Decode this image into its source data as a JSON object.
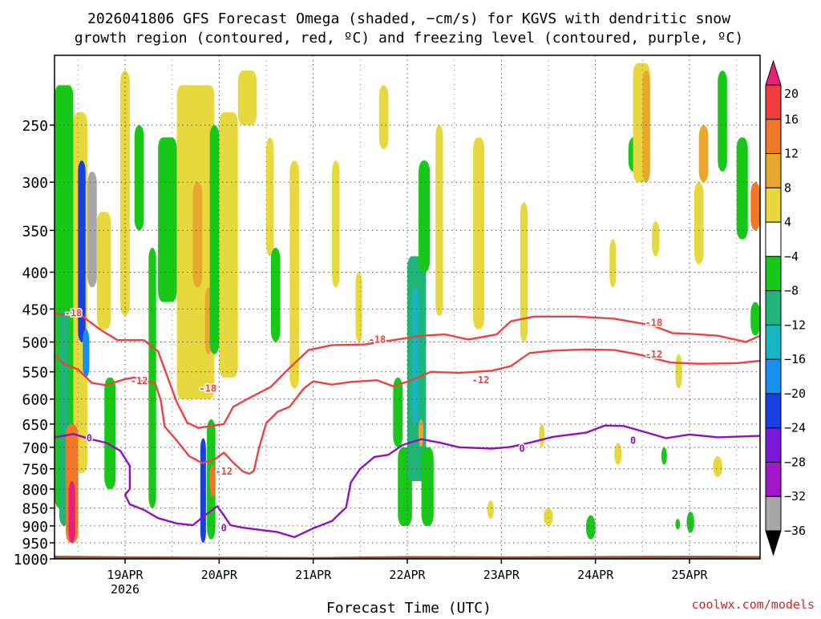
{
  "chart_data": {
    "type": "heatmap",
    "title_line1": "2026041806 GFS Forecast Omega (shaded, −cm/s) for KGVS with dendritic snow",
    "title_line2": "growth region (contoured, red, ºC) and freezing level (contoured, purple, ºC)",
    "xlabel": "Forecast Time (UTC)",
    "credit": "coolwx.com/models",
    "x_ticks": [
      {
        "label": "19APR",
        "sub": "2026",
        "t": 1
      },
      {
        "label": "20APR",
        "sub": "",
        "t": 2
      },
      {
        "label": "21APR",
        "sub": "",
        "t": 3
      },
      {
        "label": "22APR",
        "sub": "",
        "t": 4
      },
      {
        "label": "23APR",
        "sub": "",
        "t": 5
      },
      {
        "label": "24APR",
        "sub": "",
        "t": 6
      },
      {
        "label": "25APR",
        "sub": "",
        "t": 7
      }
    ],
    "xlim": [
      0.25,
      7.75
    ],
    "ylim_hpa": [
      1000,
      200
    ],
    "y_ticks": [
      250,
      300,
      350,
      400,
      450,
      500,
      550,
      600,
      650,
      700,
      750,
      800,
      850,
      900,
      950,
      1000
    ],
    "colorbar": {
      "labels": [
        "20",
        "16",
        "12",
        "8",
        "4",
        "−4",
        "−8",
        "−12",
        "−16",
        "−20",
        "−24",
        "−28",
        "−32",
        "−36"
      ],
      "bins": [
        {
          "lo": 20,
          "hi": 999,
          "color": "#e8207a"
        },
        {
          "lo": 16,
          "hi": 20,
          "color": "#f03c3c"
        },
        {
          "lo": 12,
          "hi": 16,
          "color": "#f07828"
        },
        {
          "lo": 8,
          "hi": 12,
          "color": "#e8a830"
        },
        {
          "lo": 4,
          "hi": 8,
          "color": "#e8d840"
        },
        {
          "lo": -4,
          "hi": 4,
          "color": "#ffffff"
        },
        {
          "lo": -8,
          "hi": -4,
          "color": "#18c818"
        },
        {
          "lo": -12,
          "hi": -8,
          "color": "#20b478"
        },
        {
          "lo": -16,
          "hi": -12,
          "color": "#18b4c0"
        },
        {
          "lo": -20,
          "hi": -16,
          "color": "#1890f0"
        },
        {
          "lo": -24,
          "hi": -20,
          "color": "#1840e0"
        },
        {
          "lo": -28,
          "hi": -24,
          "color": "#7818d8"
        },
        {
          "lo": -32,
          "hi": -28,
          "color": "#a018c8"
        },
        {
          "lo": -36,
          "hi": -32,
          "color": "#a8a8a8"
        },
        {
          "lo": -999,
          "hi": -36,
          "color": "#000000"
        }
      ]
    },
    "ground_color": "#a0522d",
    "ground_hpa": [
      [
        0.25,
        990
      ],
      [
        1.0,
        992
      ],
      [
        2.0,
        993
      ],
      [
        3.0,
        994
      ],
      [
        4.0,
        991
      ],
      [
        5.0,
        992
      ],
      [
        6.0,
        991
      ],
      [
        7.0,
        990
      ],
      [
        7.75,
        991
      ]
    ],
    "contours": [
      {
        "label": "-18",
        "color": "#f04040",
        "label_at": [
          [
            0.45,
            456
          ],
          [
            1.88,
            580
          ],
          [
            3.68,
            496
          ],
          [
            6.62,
            470
          ]
        ],
        "points": [
          [
            0.25,
            457
          ],
          [
            0.55,
            461
          ],
          [
            0.75,
            482
          ],
          [
            0.92,
            497
          ],
          [
            1.2,
            497
          ],
          [
            1.35,
            515
          ],
          [
            1.55,
            606
          ],
          [
            1.66,
            647
          ],
          [
            1.78,
            658
          ],
          [
            2.05,
            650
          ],
          [
            2.15,
            615
          ],
          [
            2.3,
            600
          ],
          [
            2.55,
            577
          ],
          [
            2.75,
            543
          ],
          [
            2.95,
            513
          ],
          [
            3.2,
            505
          ],
          [
            3.55,
            504
          ],
          [
            3.85,
            497
          ],
          [
            4.15,
            490
          ],
          [
            4.4,
            488
          ],
          [
            4.65,
            496
          ],
          [
            4.95,
            488
          ],
          [
            5.1,
            468
          ],
          [
            5.35,
            461
          ],
          [
            5.8,
            461
          ],
          [
            6.2,
            464
          ],
          [
            6.6,
            474
          ],
          [
            6.82,
            486
          ],
          [
            7.0,
            487
          ],
          [
            7.3,
            490
          ],
          [
            7.6,
            500
          ],
          [
            7.75,
            490
          ]
        ]
      },
      {
        "label": "-12",
        "color": "#f04040",
        "label_at": [
          [
            1.15,
            566
          ],
          [
            2.05,
            756
          ],
          [
            4.78,
            565
          ],
          [
            6.62,
            520
          ]
        ],
        "points": [
          [
            0.25,
            520
          ],
          [
            0.35,
            536
          ],
          [
            0.5,
            546
          ],
          [
            0.65,
            570
          ],
          [
            0.8,
            574
          ],
          [
            1.0,
            563
          ],
          [
            1.1,
            560
          ],
          [
            1.2,
            567
          ],
          [
            1.32,
            570
          ],
          [
            1.38,
            603
          ],
          [
            1.42,
            655
          ],
          [
            1.55,
            685
          ],
          [
            1.68,
            720
          ],
          [
            1.82,
            736
          ],
          [
            1.95,
            728
          ],
          [
            2.05,
            712
          ],
          [
            2.15,
            735
          ],
          [
            2.25,
            756
          ],
          [
            2.32,
            762
          ],
          [
            2.37,
            755
          ],
          [
            2.42,
            705
          ],
          [
            2.5,
            648
          ],
          [
            2.62,
            625
          ],
          [
            2.75,
            615
          ],
          [
            2.9,
            580
          ],
          [
            3.0,
            567
          ],
          [
            3.2,
            573
          ],
          [
            3.4,
            568
          ],
          [
            3.68,
            565
          ],
          [
            3.85,
            576
          ],
          [
            4.05,
            565
          ],
          [
            4.25,
            550
          ],
          [
            4.55,
            552
          ],
          [
            4.9,
            548
          ],
          [
            5.1,
            540
          ],
          [
            5.3,
            518
          ],
          [
            5.55,
            514
          ],
          [
            5.9,
            512
          ],
          [
            6.2,
            513
          ],
          [
            6.45,
            520
          ],
          [
            6.8,
            534
          ],
          [
            7.1,
            536
          ],
          [
            7.5,
            535
          ],
          [
            7.75,
            531
          ]
        ]
      },
      {
        "label": "0",
        "color": "#9010c0",
        "label_at": [
          [
            0.62,
            680
          ],
          [
            2.05,
            906
          ],
          [
            5.22,
            703
          ],
          [
            6.4,
            685
          ]
        ],
        "points": [
          [
            0.25,
            678
          ],
          [
            0.45,
            671
          ],
          [
            0.65,
            683
          ],
          [
            0.8,
            690
          ],
          [
            0.95,
            708
          ],
          [
            1.05,
            743
          ],
          [
            1.05,
            800
          ],
          [
            1.0,
            815
          ],
          [
            1.05,
            840
          ],
          [
            1.2,
            855
          ],
          [
            1.35,
            878
          ],
          [
            1.55,
            893
          ],
          [
            1.72,
            898
          ],
          [
            1.85,
            870
          ],
          [
            1.98,
            845
          ],
          [
            2.05,
            870
          ],
          [
            2.12,
            898
          ],
          [
            2.25,
            905
          ],
          [
            2.45,
            912
          ],
          [
            2.62,
            918
          ],
          [
            2.8,
            933
          ],
          [
            3.0,
            907
          ],
          [
            3.2,
            886
          ],
          [
            3.35,
            848
          ],
          [
            3.4,
            783
          ],
          [
            3.5,
            750
          ],
          [
            3.65,
            722
          ],
          [
            3.8,
            717
          ],
          [
            3.95,
            695
          ],
          [
            4.15,
            682
          ],
          [
            4.35,
            690
          ],
          [
            4.55,
            700
          ],
          [
            4.9,
            703
          ],
          [
            5.1,
            699
          ],
          [
            5.3,
            690
          ],
          [
            5.55,
            677
          ],
          [
            5.9,
            668
          ],
          [
            6.1,
            653
          ],
          [
            6.3,
            654
          ],
          [
            6.55,
            668
          ],
          [
            6.75,
            680
          ],
          [
            7.0,
            672
          ],
          [
            7.3,
            678
          ],
          [
            7.75,
            675
          ]
        ]
      }
    ],
    "omega_features": [
      {
        "t0": 0.25,
        "t1": 0.45,
        "p0": 220,
        "p1": 850,
        "v": -6
      },
      {
        "t0": 0.3,
        "t1": 0.4,
        "p0": 450,
        "p1": 900,
        "v": -12
      },
      {
        "t0": 0.45,
        "t1": 0.6,
        "p0": 240,
        "p1": 760,
        "v": 5
      },
      {
        "t0": 0.5,
        "t1": 0.58,
        "p0": 280,
        "p1": 500,
        "v": -22
      },
      {
        "t0": 0.6,
        "t1": 0.7,
        "p0": 290,
        "p1": 420,
        "v": -34
      },
      {
        "t0": 0.55,
        "t1": 0.62,
        "p0": 480,
        "p1": 560,
        "v": -18
      },
      {
        "t0": 0.37,
        "t1": 0.5,
        "p0": 650,
        "p1": 950,
        "v": 13
      },
      {
        "t0": 0.4,
        "t1": 0.47,
        "p0": 780,
        "p1": 950,
        "v": 22
      },
      {
        "t0": 0.7,
        "t1": 0.85,
        "p0": 330,
        "p1": 480,
        "v": 5
      },
      {
        "t0": 0.78,
        "t1": 0.9,
        "p0": 560,
        "p1": 800,
        "v": -6
      },
      {
        "t0": 0.95,
        "t1": 1.05,
        "p0": 210,
        "p1": 460,
        "v": 5
      },
      {
        "t0": 1.1,
        "t1": 1.2,
        "p0": 250,
        "p1": 350,
        "v": -6
      },
      {
        "t0": 1.25,
        "t1": 1.33,
        "p0": 370,
        "p1": 850,
        "v": -6
      },
      {
        "t0": 1.35,
        "t1": 1.55,
        "p0": 260,
        "p1": 440,
        "v": -7
      },
      {
        "t0": 1.55,
        "t1": 1.95,
        "p0": 220,
        "p1": 600,
        "v": 5
      },
      {
        "t0": 1.72,
        "t1": 1.82,
        "p0": 300,
        "p1": 420,
        "v": 10
      },
      {
        "t0": 1.85,
        "t1": 1.92,
        "p0": 420,
        "p1": 520,
        "v": 11
      },
      {
        "t0": 1.9,
        "t1": 2.0,
        "p0": 250,
        "p1": 520,
        "v": -6
      },
      {
        "t0": 1.8,
        "t1": 1.86,
        "p0": 680,
        "p1": 950,
        "v": -22
      },
      {
        "t0": 1.87,
        "t1": 1.96,
        "p0": 640,
        "p1": 940,
        "v": -6
      },
      {
        "t0": 1.9,
        "t1": 1.96,
        "p0": 740,
        "p1": 820,
        "v": 12
      },
      {
        "t0": 2.0,
        "t1": 2.2,
        "p0": 240,
        "p1": 560,
        "v": 5
      },
      {
        "t0": 2.2,
        "t1": 2.4,
        "p0": 210,
        "p1": 250,
        "v": 5
      },
      {
        "t0": 2.5,
        "t1": 2.58,
        "p0": 260,
        "p1": 380,
        "v": 5
      },
      {
        "t0": 2.55,
        "t1": 2.65,
        "p0": 370,
        "p1": 500,
        "v": -6
      },
      {
        "t0": 2.75,
        "t1": 2.85,
        "p0": 280,
        "p1": 580,
        "v": 5
      },
      {
        "t0": 3.2,
        "t1": 3.28,
        "p0": 280,
        "p1": 420,
        "v": 5
      },
      {
        "t0": 3.45,
        "t1": 3.52,
        "p0": 400,
        "p1": 500,
        "v": 5
      },
      {
        "t0": 3.7,
        "t1": 3.8,
        "p0": 220,
        "p1": 270,
        "v": 5
      },
      {
        "t0": 3.85,
        "t1": 3.95,
        "p0": 560,
        "p1": 700,
        "v": -6
      },
      {
        "t0": 3.9,
        "t1": 4.05,
        "p0": 700,
        "p1": 900,
        "v": -6
      },
      {
        "t0": 4.0,
        "t1": 4.2,
        "p0": 380,
        "p1": 780,
        "v": -10
      },
      {
        "t0": 4.05,
        "t1": 4.12,
        "p0": 420,
        "p1": 650,
        "v": -15
      },
      {
        "t0": 4.12,
        "t1": 4.24,
        "p0": 280,
        "p1": 400,
        "v": -6
      },
      {
        "t0": 4.15,
        "t1": 4.28,
        "p0": 700,
        "p1": 900,
        "v": -7
      },
      {
        "t0": 4.3,
        "t1": 4.38,
        "p0": 250,
        "p1": 460,
        "v": 5
      },
      {
        "t0": 4.12,
        "t1": 4.17,
        "p0": 640,
        "p1": 700,
        "v": 10
      },
      {
        "t0": 4.7,
        "t1": 4.82,
        "p0": 260,
        "p1": 480,
        "v": 5
      },
      {
        "t0": 4.85,
        "t1": 4.92,
        "p0": 830,
        "p1": 880,
        "v": 5
      },
      {
        "t0": 5.2,
        "t1": 5.28,
        "p0": 320,
        "p1": 500,
        "v": 5
      },
      {
        "t0": 5.4,
        "t1": 5.46,
        "p0": 650,
        "p1": 700,
        "v": 5
      },
      {
        "t0": 5.45,
        "t1": 5.55,
        "p0": 850,
        "p1": 900,
        "v": 5
      },
      {
        "t0": 5.9,
        "t1": 6.0,
        "p0": 870,
        "p1": 940,
        "v": -6
      },
      {
        "t0": 6.15,
        "t1": 6.22,
        "p0": 360,
        "p1": 420,
        "v": 5
      },
      {
        "t0": 6.2,
        "t1": 6.28,
        "p0": 690,
        "p1": 740,
        "v": 5
      },
      {
        "t0": 6.35,
        "t1": 6.45,
        "p0": 260,
        "p1": 290,
        "v": -6
      },
      {
        "t0": 6.4,
        "t1": 6.58,
        "p0": 205,
        "p1": 300,
        "v": 6
      },
      {
        "t0": 6.5,
        "t1": 6.58,
        "p0": 210,
        "p1": 300,
        "v": 10
      },
      {
        "t0": 6.6,
        "t1": 6.68,
        "p0": 340,
        "p1": 380,
        "v": 5
      },
      {
        "t0": 6.7,
        "t1": 6.76,
        "p0": 700,
        "p1": 740,
        "v": -6
      },
      {
        "t0": 6.85,
        "t1": 6.92,
        "p0": 520,
        "p1": 580,
        "v": 5
      },
      {
        "t0": 6.85,
        "t1": 6.9,
        "p0": 880,
        "p1": 910,
        "v": -6
      },
      {
        "t0": 6.97,
        "t1": 7.05,
        "p0": 860,
        "p1": 920,
        "v": -6
      },
      {
        "t0": 7.05,
        "t1": 7.15,
        "p0": 300,
        "p1": 390,
        "v": 5
      },
      {
        "t0": 7.1,
        "t1": 7.2,
        "p0": 250,
        "p1": 300,
        "v": 10
      },
      {
        "t0": 7.25,
        "t1": 7.35,
        "p0": 720,
        "p1": 770,
        "v": 5
      },
      {
        "t0": 7.3,
        "t1": 7.4,
        "p0": 210,
        "p1": 290,
        "v": -6
      },
      {
        "t0": 7.5,
        "t1": 7.62,
        "p0": 260,
        "p1": 360,
        "v": -6
      },
      {
        "t0": 7.65,
        "t1": 7.75,
        "p0": 300,
        "p1": 350,
        "v": 12
      },
      {
        "t0": 7.65,
        "t1": 7.75,
        "p0": 440,
        "p1": 490,
        "v": -6
      }
    ]
  }
}
